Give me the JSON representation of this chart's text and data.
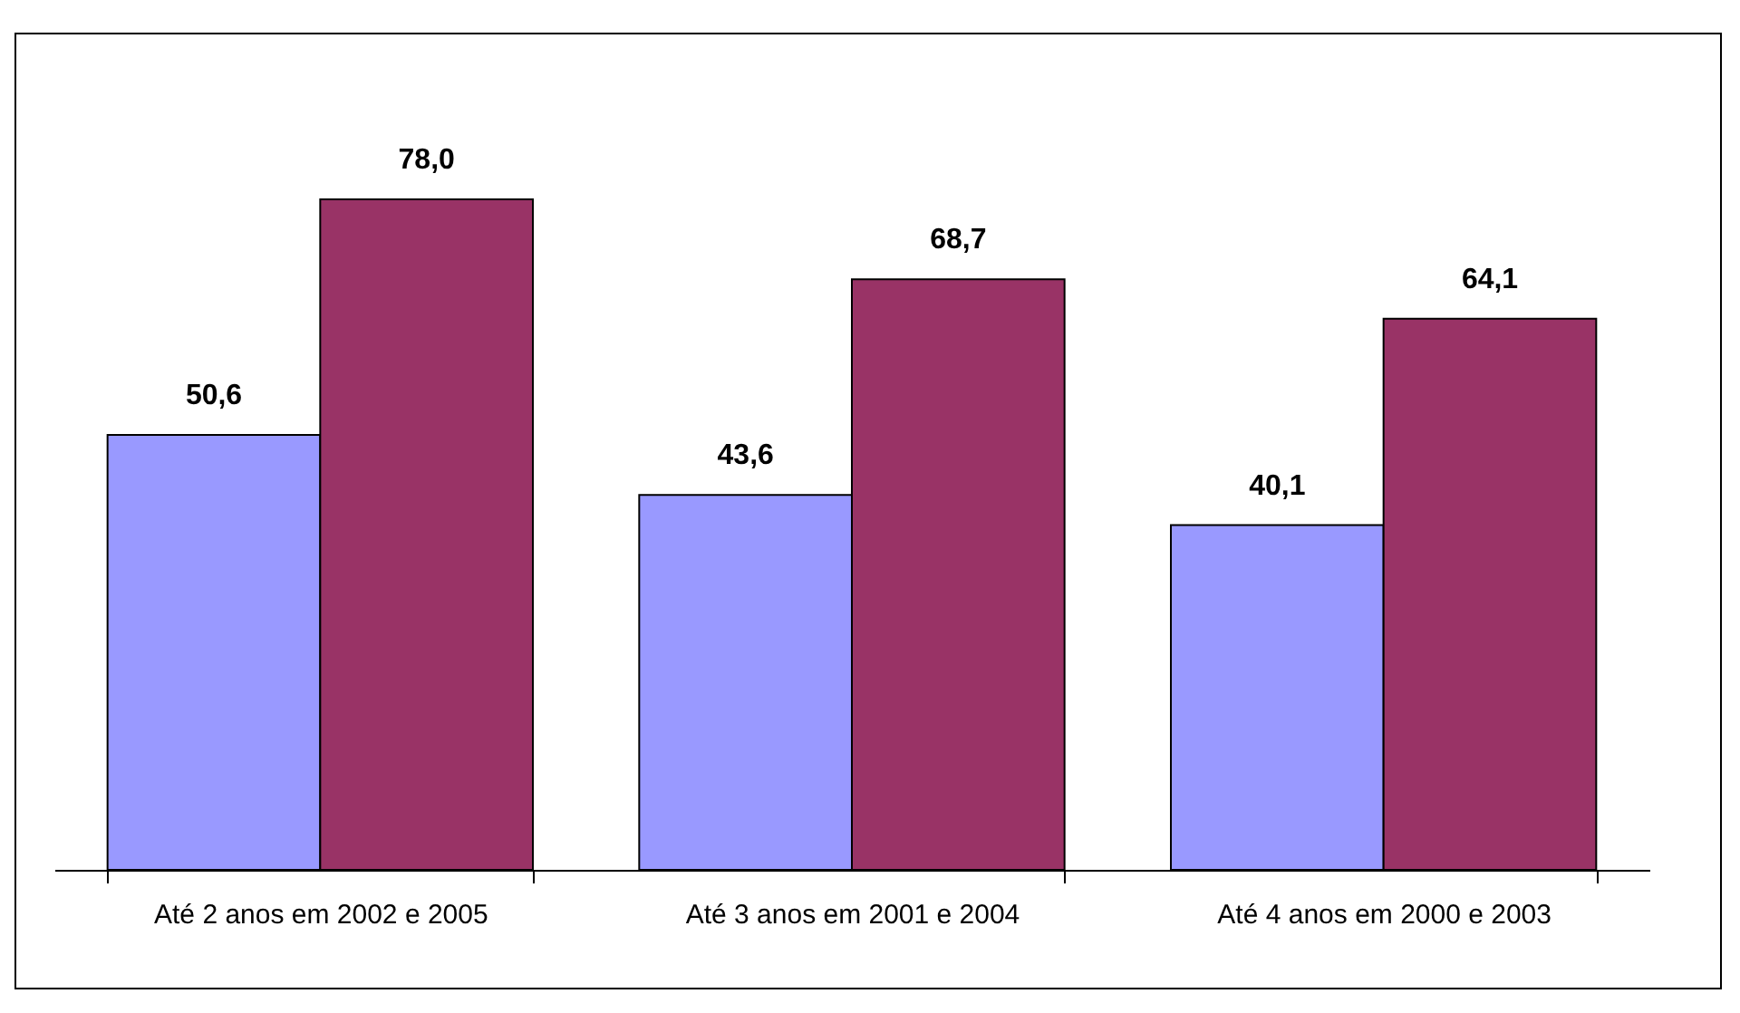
{
  "chart_data": {
    "type": "bar",
    "categories": [
      "Até 2 anos em 2002 e 2005",
      "Até 3 anos em 2001 e 2004",
      "Até 4 anos em 2000 e 2003"
    ],
    "series": [
      {
        "color": "#9999ff",
        "values": [
          50.6,
          43.6,
          40.1
        ],
        "value_labels": [
          "50,6",
          "43,6",
          "40,1"
        ]
      },
      {
        "color": "#993366",
        "values": [
          78.0,
          68.7,
          64.1
        ],
        "value_labels": [
          "78,0",
          "68,7",
          "64,1"
        ]
      }
    ],
    "grid": false,
    "legend": false
  }
}
